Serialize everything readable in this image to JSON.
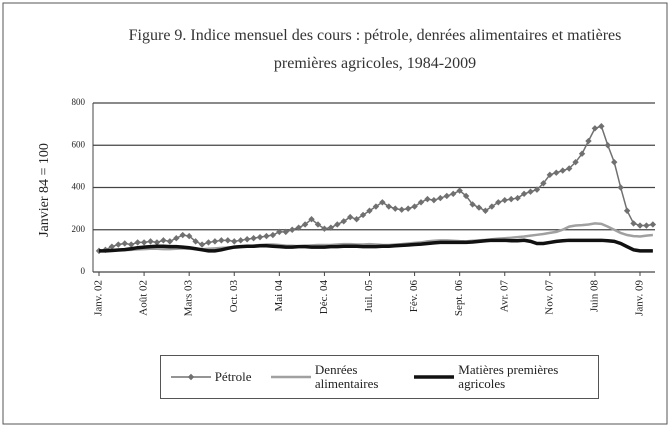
{
  "chart_data": {
    "type": "line",
    "title": "Figure 9. Indice mensuel des cours : pétrole, denrées alimentaires et matières premières agricoles, 1984-2009",
    "y_label": "Janvier 84 = 100",
    "categories": [
      "Janv. 02",
      null,
      null,
      null,
      null,
      null,
      null,
      "Août 02",
      null,
      null,
      null,
      null,
      null,
      null,
      "Mars 03",
      null,
      null,
      null,
      null,
      null,
      null,
      "Oct. 03",
      null,
      null,
      null,
      null,
      null,
      null,
      "Mai 04",
      null,
      null,
      null,
      null,
      null,
      null,
      "Déc. 04",
      null,
      null,
      null,
      null,
      null,
      null,
      "Juil. 05",
      null,
      null,
      null,
      null,
      null,
      null,
      "Fév. 06",
      null,
      null,
      null,
      null,
      null,
      null,
      "Sept. 06",
      null,
      null,
      null,
      null,
      null,
      null,
      "Avr. 07",
      null,
      null,
      null,
      null,
      null,
      null,
      "Nov. 07",
      null,
      null,
      null,
      null,
      null,
      null,
      "Juin 08",
      null,
      null,
      null,
      null,
      null,
      null,
      "Janv. 09",
      null,
      null
    ],
    "series": [
      {
        "name": "Pétrole",
        "color": "#707070",
        "marker": "diamond",
        "values": [
          100,
          105,
          120,
          130,
          135,
          130,
          140,
          140,
          145,
          140,
          150,
          145,
          160,
          175,
          170,
          145,
          130,
          140,
          145,
          150,
          150,
          145,
          150,
          155,
          160,
          165,
          170,
          175,
          190,
          190,
          200,
          210,
          225,
          250,
          225,
          205,
          210,
          225,
          240,
          260,
          250,
          270,
          290,
          310,
          330,
          310,
          300,
          295,
          300,
          310,
          330,
          345,
          340,
          350,
          360,
          370,
          385,
          360,
          320,
          305,
          290,
          310,
          330,
          340,
          345,
          350,
          370,
          380,
          390,
          420,
          460,
          470,
          480,
          490,
          520,
          560,
          620,
          680,
          690,
          600,
          520,
          400,
          290,
          230,
          220,
          220,
          225
        ]
      },
      {
        "name": "Denrées alimentaires",
        "color": "#a0a0a0",
        "values": [
          100,
          100,
          102,
          103,
          104,
          105,
          107,
          108,
          110,
          110,
          108,
          108,
          110,
          112,
          110,
          108,
          108,
          110,
          112,
          114,
          116,
          118,
          120,
          122,
          125,
          128,
          130,
          130,
          128,
          125,
          124,
          122,
          124,
          126,
          128,
          128,
          128,
          130,
          132,
          132,
          130,
          130,
          132,
          130,
          128,
          128,
          130,
          132,
          135,
          138,
          140,
          145,
          148,
          150,
          150,
          148,
          146,
          145,
          148,
          150,
          152,
          155,
          158,
          160,
          162,
          165,
          168,
          172,
          176,
          180,
          185,
          190,
          200,
          215,
          220,
          222,
          225,
          230,
          228,
          215,
          200,
          185,
          175,
          170,
          168,
          172,
          175
        ]
      },
      {
        "name": "Matières premières agricoles",
        "color": "#111111",
        "values": [
          100,
          100,
          102,
          104,
          106,
          110,
          115,
          118,
          120,
          122,
          122,
          120,
          120,
          118,
          115,
          110,
          105,
          100,
          100,
          105,
          112,
          118,
          120,
          122,
          122,
          124,
          124,
          122,
          120,
          118,
          118,
          120,
          120,
          118,
          118,
          118,
          120,
          120,
          122,
          122,
          122,
          120,
          120,
          120,
          122,
          122,
          124,
          126,
          128,
          130,
          132,
          135,
          138,
          140,
          140,
          140,
          140,
          140,
          142,
          145,
          148,
          150,
          150,
          150,
          148,
          148,
          150,
          145,
          135,
          135,
          140,
          145,
          148,
          150,
          150,
          150,
          150,
          150,
          150,
          148,
          145,
          135,
          120,
          105,
          100,
          100,
          100
        ]
      }
    ],
    "ylim": [
      0,
      800
    ],
    "yticks": [
      0,
      200,
      400,
      600,
      800
    ],
    "grid": true,
    "legend": "bottom"
  }
}
